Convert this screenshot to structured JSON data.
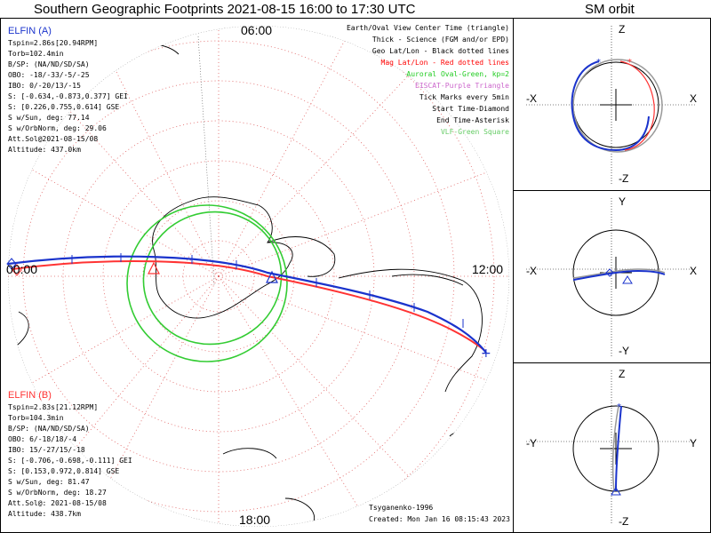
{
  "header": {
    "title": "Southern Geographic Footprints 2021-08-15 16:00 to 17:30 UTC",
    "sm_title": "SM orbit"
  },
  "map": {
    "time_labels": {
      "top": "06:00",
      "left": "00:00",
      "right": "12:00",
      "bottom": "18:00"
    },
    "legend": [
      {
        "text": "Earth/Oval View Center Time (triangle)",
        "color": "#000000"
      },
      {
        "text": "Thick - Science (FGM and/or EPD)",
        "color": "#000000"
      },
      {
        "text": "Geo Lat/Lon - Black dotted lines",
        "color": "#000000"
      },
      {
        "text": "Mag Lat/Lon - Red dotted lines",
        "color": "#ff0000"
      },
      {
        "text": "Auroral Oval-Green, kp=2",
        "color": "#22cc22"
      },
      {
        "text": "EISCAT-Purple Triangle",
        "color": "#cc66cc"
      },
      {
        "text": "Tick Marks every 5min",
        "color": "#000000"
      },
      {
        "text": "Start Time-Diamond",
        "color": "#000000"
      },
      {
        "text": "End Time-Asterisk",
        "color": "#000000"
      },
      {
        "text": "VLF-Green Square",
        "color": "#66cc66"
      }
    ],
    "elfin_a": {
      "title": "ELFIN (A)",
      "color": "#1a33cc",
      "lines": [
        "Tspin=2.86s[20.94RPM]",
        "Torb=102.4min",
        "B/SP: (NA/ND/SD/SA)",
        "OBO: -18/-33/-5/-25",
        "IBO: 0/-20/13/-15",
        "S: [-0.634,-0.873,0.377] GEI",
        "S: [0.226,0.755,0.614] GSE",
        "S w/Sun, deg: 77.14",
        "S w/OrbNorm, deg: 29.06",
        "Att.Sol@2021-08-15/08",
        "Altitude: 437.0km"
      ]
    },
    "elfin_b": {
      "title": "ELFIN (B)",
      "color": "#ff3333",
      "lines": [
        "Tspin=2.83s[21.12RPM]",
        "Torb=104.3min",
        "B/SP: (NA/ND/SD/SA)",
        "OBO: 6/-18/18/-4",
        "IBO: 15/-27/15/-18",
        "S: [-0.706,-0.698,-0.111] GEI",
        "S: [0.153,0.972,0.814] GSE",
        "S w/Sun, deg: 81.47",
        "S w/OrbNorm, deg: 18.27",
        "Att.Sol@: 2021-08-15/08",
        "Altitude: 438.7km"
      ]
    },
    "credits": {
      "model": "Tsyganenko-1996",
      "created": "Created: Mon Jan 16 08:15:43 2023"
    }
  },
  "sm_orbit": {
    "panels": [
      {
        "top": "Z",
        "bottom": "-Z",
        "left": "-X",
        "right": "X"
      },
      {
        "top": "Y",
        "bottom": "-Y",
        "left": "-X",
        "right": "X"
      },
      {
        "top": "Z",
        "bottom": "-Z",
        "left": "-Y",
        "right": "Y"
      }
    ]
  },
  "colors": {
    "elfin_a": "#1a33cc",
    "elfin_b": "#ff3333",
    "oval": "#33cc33",
    "mag_grid": "#e06060",
    "gray_orbit": "#999999"
  }
}
